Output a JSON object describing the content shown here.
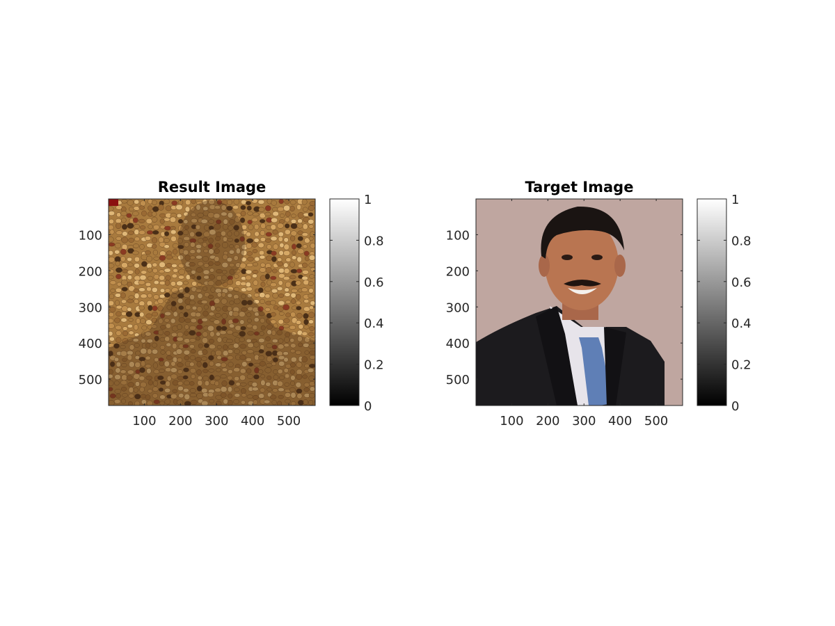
{
  "chart_data": [
    {
      "type": "image",
      "title": "Result Image",
      "image_content": "photomosaic built from pebbles / beans tiles forming a faint portrait",
      "xlim": [
        1,
        573
      ],
      "ylim": [
        1,
        573
      ],
      "y_reversed": true,
      "xticks": [
        100,
        200,
        300,
        400,
        500
      ],
      "yticks": [
        100,
        200,
        300,
        400,
        500
      ],
      "xticklabels": [
        "100",
        "200",
        "300",
        "400",
        "500"
      ],
      "yticklabels": [
        "100",
        "200",
        "300",
        "400",
        "500"
      ],
      "colors": {
        "tile_base": "#a87a3e",
        "tile_light": "#d6a865",
        "tile_dark": "#4a2f17",
        "tile_red": "#8a3a22"
      },
      "colorbar": {
        "colormap": "gray",
        "range": [
          0,
          1
        ],
        "ticks": [
          0,
          0.2,
          0.4,
          0.6,
          0.8,
          1
        ],
        "ticklabels": [
          "0",
          "0.2",
          "0.4",
          "0.6",
          "0.8",
          "1"
        ]
      }
    },
    {
      "type": "image",
      "title": "Target Image",
      "image_content": "portrait of smiling man in dark suit, white shirt and blue tie against pinkish-beige background",
      "xlim": [
        1,
        573
      ],
      "ylim": [
        1,
        573
      ],
      "y_reversed": true,
      "xticks": [
        100,
        200,
        300,
        400,
        500
      ],
      "yticks": [
        100,
        200,
        300,
        400,
        500
      ],
      "xticklabels": [
        "100",
        "200",
        "300",
        "400",
        "500"
      ],
      "yticklabels": [
        "100",
        "200",
        "300",
        "400",
        "500"
      ],
      "colors": {
        "background": "#bfa6a0",
        "suit": "#1c1b1e",
        "shirt": "#e7e4ea",
        "tie": "#5f7fb6",
        "skin": "#b97551",
        "hair": "#1a1412"
      },
      "colorbar": {
        "colormap": "gray",
        "range": [
          0,
          1
        ],
        "ticks": [
          0,
          0.2,
          0.4,
          0.6,
          0.8,
          1
        ],
        "ticklabels": [
          "0",
          "0.2",
          "0.4",
          "0.6",
          "0.8",
          "1"
        ]
      }
    }
  ]
}
